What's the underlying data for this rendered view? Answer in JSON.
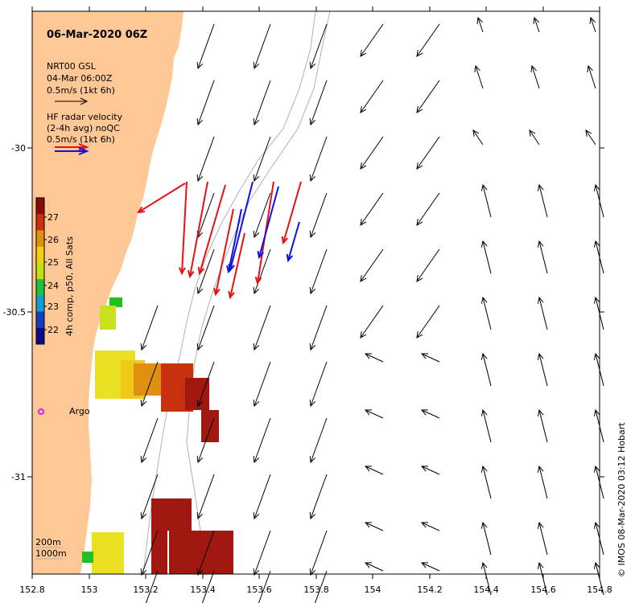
{
  "title": "06-Mar-2020 06Z",
  "legend": {
    "model_name": "NRT00 GSL",
    "model_time": "04-Mar 06:00Z",
    "model_scale": "0.5m/s (1kt 6h)",
    "radar_line1": "HF radar velocity",
    "radar_line2": "(2-4h avg) noQC",
    "radar_scale": "0.5m/s (1kt 6h)"
  },
  "colorbar": {
    "label": "4h comp, p50, All Sats",
    "ticks": [
      "22",
      "23",
      "24",
      "25",
      "26",
      "27"
    ],
    "colors": [
      "#0a0a8a",
      "#1040c0",
      "#10a0d0",
      "#20c040",
      "#c0e010",
      "#f0d010",
      "#e09010",
      "#c83010",
      "#8a0a0a"
    ]
  },
  "axes": {
    "x_ticks": [
      "152.8",
      "153",
      "153.2",
      "153.4",
      "153.6",
      "153.8",
      "154",
      "154.2",
      "154.4",
      "154.6",
      "154.8"
    ],
    "y_ticks": [
      "-30",
      "-30.5",
      "-31"
    ]
  },
  "argo_label": "Argo",
  "depth_legend": {
    "line1": "200m",
    "line2": "1000m"
  },
  "credit": "© IMOS 08-Mar-2020 03:12 Hobart",
  "colors": {
    "land": "#fdc896",
    "model_arrow": "#000000",
    "radar_red": "#e81010",
    "radar_blue": "#1010e0",
    "argo": "#e020e0"
  }
}
